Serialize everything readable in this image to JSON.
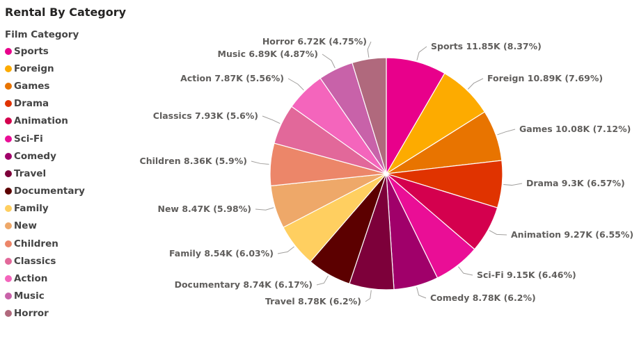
{
  "title": "Rental By Category",
  "legend": {
    "title": "Film Category",
    "items": [
      {
        "label": "Sports",
        "color": "#E8008B"
      },
      {
        "label": "Foreign",
        "color": "#FDAB00"
      },
      {
        "label": "Games",
        "color": "#E87400"
      },
      {
        "label": "Drama",
        "color": "#E03300"
      },
      {
        "label": "Animation",
        "color": "#D4004E"
      },
      {
        "label": "Sci-Fi",
        "color": "#EA0E96"
      },
      {
        "label": "Comedy",
        "color": "#A0006A"
      },
      {
        "label": "Travel",
        "color": "#7D003A"
      },
      {
        "label": "Documentary",
        "color": "#5C0000"
      },
      {
        "label": "Family",
        "color": "#FFCF60"
      },
      {
        "label": "New",
        "color": "#EEA869"
      },
      {
        "label": "Children",
        "color": "#EC8669"
      },
      {
        "label": "Classics",
        "color": "#E2689A"
      },
      {
        "label": "Action",
        "color": "#F465BC"
      },
      {
        "label": "Music",
        "color": "#C862A9"
      },
      {
        "label": "Horror",
        "color": "#B0697D"
      }
    ]
  },
  "chart_data": {
    "type": "pie",
    "title": "Rental By Category",
    "legend_title": "Film Category",
    "legend_position": "left",
    "slices": [
      {
        "name": "Sports",
        "value": 11.85,
        "label": "Sports 11.85K (8.37%)",
        "color": "#E8008B"
      },
      {
        "name": "Foreign",
        "value": 10.89,
        "label": "Foreign 10.89K (7.69%)",
        "color": "#FDAB00"
      },
      {
        "name": "Games",
        "value": 10.08,
        "label": "Games 10.08K (7.12%)",
        "color": "#E87400"
      },
      {
        "name": "Drama",
        "value": 9.3,
        "label": "Drama 9.3K (6.57%)",
        "color": "#E03300"
      },
      {
        "name": "Animation",
        "value": 9.27,
        "label": "Animation 9.27K (6.55%)",
        "color": "#D4004E"
      },
      {
        "name": "Sci-Fi",
        "value": 9.15,
        "label": "Sci-Fi 9.15K (6.46%)",
        "color": "#EA0E96"
      },
      {
        "name": "Comedy",
        "value": 8.78,
        "label": "Comedy 8.78K (6.2%)",
        "color": "#A0006A"
      },
      {
        "name": "Travel",
        "value": 8.78,
        "label": "Travel 8.78K (6.2%)",
        "color": "#7D003A"
      },
      {
        "name": "Documentary",
        "value": 8.74,
        "label": "Documentary 8.74K (6.17%)",
        "color": "#5C0000"
      },
      {
        "name": "Family",
        "value": 8.54,
        "label": "Family 8.54K (6.03%)",
        "color": "#FFCF60"
      },
      {
        "name": "New",
        "value": 8.47,
        "label": "New 8.47K (5.98%)",
        "color": "#EEA869"
      },
      {
        "name": "Children",
        "value": 8.36,
        "label": "Children 8.36K (5.9%)",
        "color": "#EC8669"
      },
      {
        "name": "Classics",
        "value": 7.93,
        "label": "Classics 7.93K (5.6%)",
        "color": "#E2689A"
      },
      {
        "name": "Action",
        "value": 7.87,
        "label": "Action 7.87K (5.56%)",
        "color": "#F465BC"
      },
      {
        "name": "Music",
        "value": 6.89,
        "label": "Music 6.89K (4.87%)",
        "color": "#C862A9"
      },
      {
        "name": "Horror",
        "value": 6.72,
        "label": "Horror 6.72K (4.75%)",
        "color": "#B0697D"
      }
    ]
  }
}
